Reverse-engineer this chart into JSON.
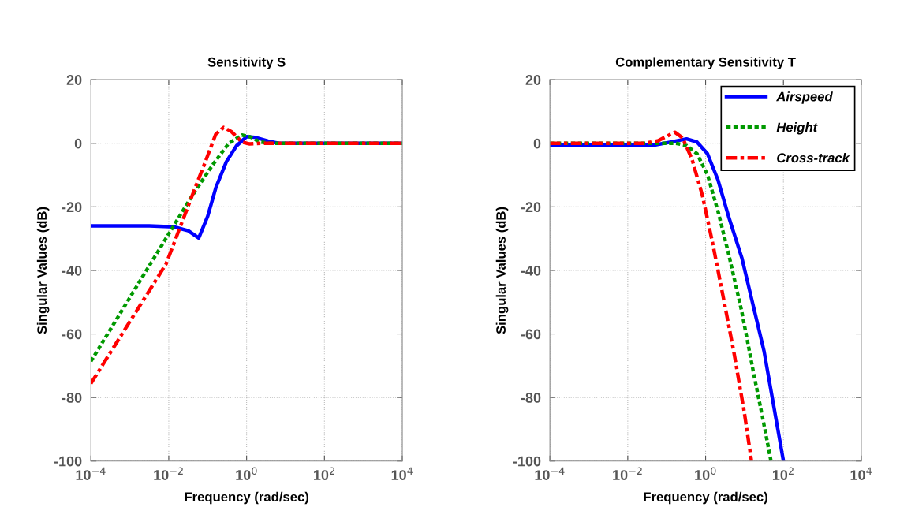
{
  "chart_data": [
    {
      "type": "line",
      "title": "Sensitivity S",
      "xlabel": "Frequency (rad/sec)",
      "ylabel": "Singular Values (dB)",
      "log": "x",
      "grid": true,
      "legend": false,
      "xlim": [
        0.0001,
        10000
      ],
      "ylim": [
        -100,
        20
      ],
      "xticks": [
        {
          "value": 0.0001,
          "label": "10$^{−4}$"
        },
        {
          "value": 0.01,
          "label": "10$^{−2}$"
        },
        {
          "value": 1,
          "label": "10$^{0}$"
        },
        {
          "value": 100,
          "label": "10$^{2}$"
        },
        {
          "value": 10000,
          "label": "10$^{4}$"
        }
      ],
      "yticks": [
        -100,
        -80,
        -60,
        -40,
        -20,
        0,
        20
      ],
      "series": [
        {
          "color": "#0000ff",
          "line_style": "solid",
          "x": [
            0.0001,
            0.00316,
            0.0135,
            0.0316,
            0.0589,
            0.1,
            0.162,
            0.302,
            0.55,
            1,
            1.62,
            3.55,
            6.61,
            10000
          ],
          "values": [
            -26,
            -26,
            -26.3,
            -27.5,
            -29.8,
            -23,
            -14,
            -5.8,
            -0.8,
            2.1,
            1.9,
            0.7,
            0,
            0
          ]
        },
        {
          "color": "#009900",
          "line_style": "dotted",
          "x": [
            0.0001,
            0.0398,
            0.138,
            0.347,
            0.759,
            1.2,
            2.24,
            4.17,
            10000
          ],
          "values": [
            -68.6,
            -16.5,
            -6.6,
            0,
            2.6,
            2.1,
            0.4,
            0,
            0
          ]
        },
        {
          "color": "#ff0000",
          "line_style": "dashdot",
          "x": [
            0.0001,
            0.00851,
            0.0398,
            0.0871,
            0.162,
            0.257,
            0.407,
            0.759,
            1.2,
            2.24,
            10000
          ],
          "values": [
            -75.6,
            -38,
            -16.5,
            -5.8,
            2.9,
            5.0,
            3.7,
            0.4,
            -0.2,
            0,
            0
          ]
        }
      ]
    },
    {
      "type": "line",
      "title": "Complementary Sensitivity T",
      "xlabel": "Frequency (rad/sec)",
      "ylabel": "Singular Values (dB)",
      "log": "x",
      "grid": true,
      "legend": "top right",
      "xlim": [
        0.0001,
        10000
      ],
      "ylim": [
        -100,
        20
      ],
      "xticks": [
        {
          "value": 0.0001,
          "label": "10$^{−4}$"
        },
        {
          "value": 0.01,
          "label": "10$^{−2}$"
        },
        {
          "value": 1,
          "label": "10$^{0}$"
        },
        {
          "value": 100,
          "label": "10$^{2}$"
        },
        {
          "value": 10000,
          "label": "10$^{4}$"
        }
      ],
      "yticks": [
        -100,
        -80,
        -60,
        -40,
        -20,
        0,
        20
      ],
      "series": [
        {
          "name": "Airspeed",
          "color": "#0000ff",
          "line_style": "solid",
          "x": [
            0.0001,
            0.0513,
            0.129,
            0.324,
            0.603,
            1.12,
            2.09,
            3.89,
            8.51,
            18.2,
            31.6,
            100
          ],
          "values": [
            -0.5,
            -0.5,
            0.4,
            1.4,
            0.4,
            -3.3,
            -11.6,
            -23,
            -36,
            -53,
            -65.3,
            -100
          ]
        },
        {
          "name": "Height",
          "color": "#009900",
          "line_style": "dotted",
          "x": [
            0.0001,
            0.174,
            0.324,
            0.603,
            1.12,
            2.09,
            3.89,
            8.51,
            18.2,
            28.8,
            47.9
          ],
          "values": [
            0,
            0,
            -0.7,
            -3.3,
            -9.9,
            -21.5,
            -34.7,
            -53,
            -74,
            -86,
            -100
          ]
        },
        {
          "name": "Cross-track",
          "color": "#ff0000",
          "line_style": "dashdot",
          "x": [
            0.0001,
            0.0275,
            0.0603,
            0.112,
            0.162,
            0.257,
            0.447,
            0.832,
            1.55,
            2.88,
            5.25,
            9.77,
            15.1
          ],
          "values": [
            0,
            0,
            0.8,
            2.5,
            3.5,
            1.7,
            -5,
            -16.5,
            -32,
            -48.8,
            -65.3,
            -84.3,
            -100
          ]
        }
      ]
    }
  ]
}
